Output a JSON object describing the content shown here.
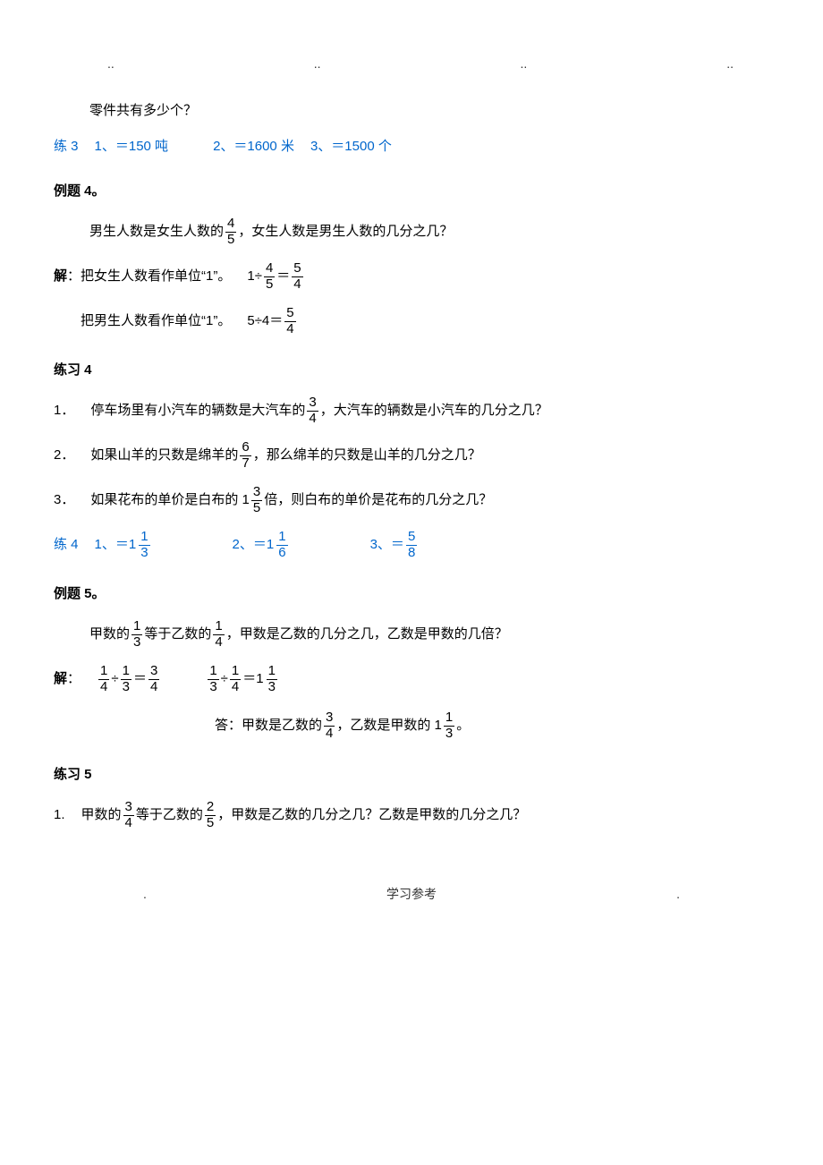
{
  "header_dots": [
    "..",
    "..",
    "..",
    ".."
  ],
  "top_line": "零件共有多少个？",
  "ex3_ans": {
    "label": "练 3",
    "n1": "1、",
    "v1": "＝150 吨",
    "n2": "2、",
    "v2": "＝1600 米",
    "n3": "3、",
    "v3": "＝1500 个"
  },
  "ex4_title": "例题 4",
  "ex4_body": {
    "l1a": "男生人数是女生人数的",
    "l1b": "，女生人数是男生人数的几分之几？",
    "sol": "解",
    "l2a": "：把女生人数看作单位“1”。",
    "eq1_pre": "1÷",
    "eq1_eq": "＝",
    "l3a": "把男生人数看作单位“1”。",
    "eq2": "5÷4＝",
    "f45n": "4",
    "f45d": "5",
    "f54n": "5",
    "f54d": "4"
  },
  "p4_title": "练习 4",
  "p4": {
    "q1a": "1．",
    "q1b": "停车场里有小汽车的辆数是大汽车的",
    "q1c": "，大汽车的辆数是小汽车的几分之几？",
    "f1n": "3",
    "f1d": "4",
    "q2a": "2．",
    "q2b": "如果山羊的只数是绵羊的",
    "q2c": "，那么绵羊的只数是山羊的几分之几？",
    "f2n": "6",
    "f2d": "7",
    "q3a": "3．",
    "q3b": "如果花布的单价是白布的 1",
    "q3c": "倍，则白布的单价是花布的几分之几？",
    "f3n": "3",
    "f3d": "5"
  },
  "ex4_ans": {
    "label": "练 4",
    "n1": "1、",
    "eq": "＝1",
    "n2": "2、",
    "n3": "3、",
    "eq3": "＝",
    "f1n": "1",
    "f1d": "3",
    "f2n": "1",
    "f2d": "6",
    "f3n": "5",
    "f3d": "8"
  },
  "ex5_title": "例题 5",
  "ex5_body": {
    "l1a": "甲数的",
    "l1b": "等于乙数的",
    "l1c": "，甲数是乙数的几分之几，乙数是甲数的几倍？",
    "fa_n": "1",
    "fa_d": "3",
    "fb_n": "1",
    "fb_d": "4",
    "sol": "解",
    "colon": "：",
    "div": "÷",
    "eq": "＝",
    "one": "1",
    "r_14n": "1",
    "r_14d": "4",
    "r_13n": "1",
    "r_13d": "3",
    "r_34n": "3",
    "r_34d": "4",
    "ans_a": "答：甲数是乙数的",
    "ans_b": "，乙数是甲数的 1",
    "ans_c": "。",
    "af1n": "3",
    "af1d": "4",
    "af2n": "1",
    "af2d": "3"
  },
  "p5_title": "练习 5",
  "p5": {
    "q1a": "1.",
    "q1b": "甲数的",
    "q1c": "等于乙数的",
    "q1d": "，甲数是乙数的几分之几？乙数是甲数的几分之几？",
    "f1n": "3",
    "f1d": "4",
    "f2n": "2",
    "f2d": "5"
  },
  "footer": {
    "dot": ".",
    "text": "学习参考"
  }
}
